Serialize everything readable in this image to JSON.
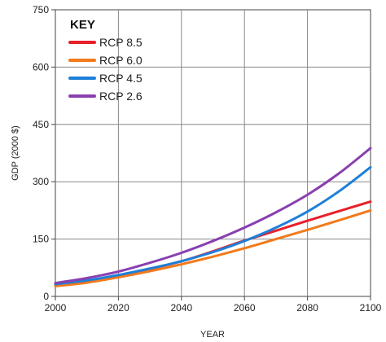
{
  "chart_data": {
    "type": "line",
    "xlabel": "YEAR",
    "ylabel": "GDP (2000 $)",
    "xlim": [
      2000,
      2100
    ],
    "ylim": [
      0,
      750
    ],
    "x_ticks": [
      2000,
      2020,
      2040,
      2060,
      2080,
      2100
    ],
    "y_ticks": [
      0,
      150,
      300,
      450,
      600,
      750
    ],
    "grid": true,
    "legend_title": "KEY",
    "legend_position": "top-left",
    "x": [
      2000,
      2010,
      2020,
      2030,
      2040,
      2050,
      2060,
      2070,
      2080,
      2090,
      2100
    ],
    "series": [
      {
        "name": "RCP 8.5",
        "color": "#e8202a",
        "values": [
          30,
          40,
          55,
          72,
          92,
          118,
          146,
          172,
          198,
          223,
          248
        ]
      },
      {
        "name": "RCP 6.0",
        "color": "#f27a1a",
        "values": [
          27,
          36,
          50,
          66,
          84,
          104,
          126,
          150,
          174,
          199,
          225
        ]
      },
      {
        "name": "RCP 4.5",
        "color": "#1e7fd8",
        "values": [
          32,
          42,
          56,
          73,
          92,
          116,
          145,
          180,
          222,
          275,
          338
        ]
      },
      {
        "name": "RCP 2.6",
        "color": "#8a3fb0",
        "values": [
          35,
          48,
          65,
          88,
          114,
          145,
          180,
          220,
          266,
          322,
          388
        ]
      }
    ]
  }
}
